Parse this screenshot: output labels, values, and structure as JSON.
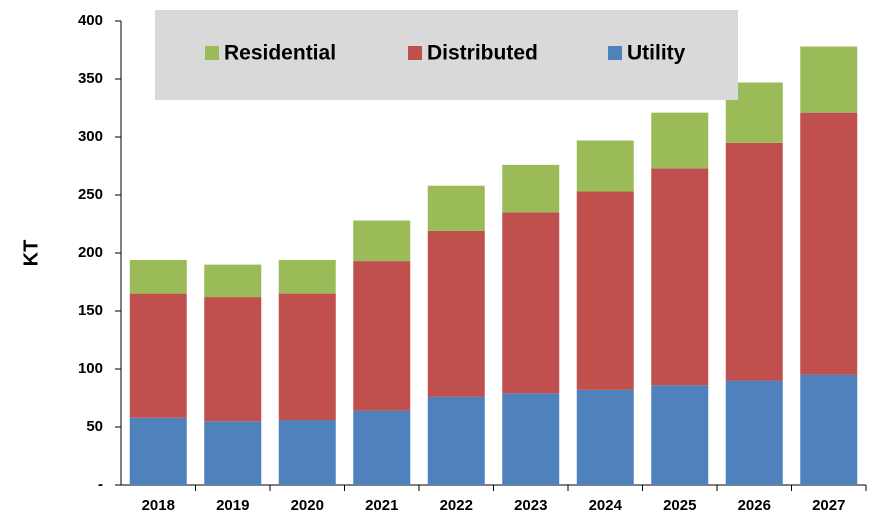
{
  "chart_data": {
    "type": "stacked_bar",
    "ylabel": "KT",
    "categories": [
      "2018",
      "2019",
      "2020",
      "2021",
      "2022",
      "2023",
      "2024",
      "2025",
      "2026",
      "2027"
    ],
    "series": [
      {
        "name": "Utility",
        "color": "#4f81bd",
        "values": [
          58,
          55,
          56,
          64,
          76,
          79,
          82,
          86,
          90,
          95
        ]
      },
      {
        "name": "Distributed",
        "color": "#c0504d",
        "values": [
          107,
          107,
          109,
          129,
          143,
          156,
          171,
          187,
          205,
          226
        ]
      },
      {
        "name": "Residential",
        "color": "#9bbb59",
        "values": [
          29,
          28,
          29,
          35,
          39,
          41,
          44,
          48,
          52,
          57
        ]
      }
    ],
    "ylim": [
      0,
      400
    ],
    "yticks": [
      {
        "value": 0,
        "label": "-"
      },
      50,
      100,
      150,
      200,
      250,
      300,
      350,
      400
    ],
    "grid": false,
    "legend": "top"
  }
}
